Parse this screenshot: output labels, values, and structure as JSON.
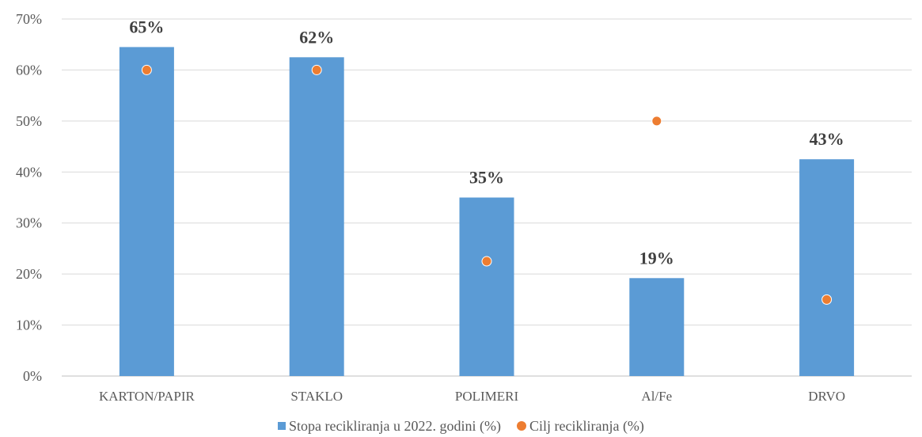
{
  "chart_data": {
    "type": "bar",
    "categories": [
      "KARTON/PAPIR",
      "STAKLO",
      "POLIMERI",
      "Al/Fe",
      "DRVO"
    ],
    "series": [
      {
        "name": "Stopa recikliranja u 2022. godini (%)",
        "kind": "bar",
        "values": [
          64.5,
          62.5,
          35,
          19.2,
          42.5
        ],
        "labels": [
          "65%",
          "62%",
          "35%",
          "19%",
          "43%"
        ],
        "color": "#5B9BD5"
      },
      {
        "name": "Cilj recikliranja (%)",
        "kind": "scatter",
        "values": [
          60,
          60,
          22.5,
          50,
          15
        ],
        "color": "#ED7D31"
      }
    ],
    "title": "",
    "xlabel": "",
    "ylabel": "",
    "ylim": [
      0,
      70
    ],
    "yticks": [
      "0%",
      "10%",
      "20%",
      "30%",
      "40%",
      "50%",
      "60%",
      "70%"
    ],
    "grid": true,
    "legend_position": "bottom"
  }
}
